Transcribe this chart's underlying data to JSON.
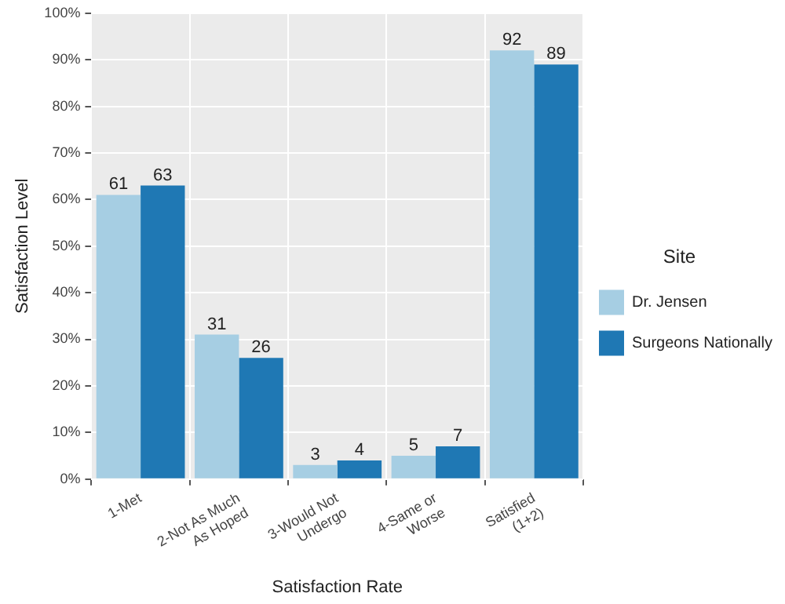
{
  "chart_data": {
    "type": "bar",
    "xlabel": "Satisfaction Rate",
    "ylabel": "Satisfaction Level",
    "legend_title": "Site",
    "categories": [
      "1-Met",
      "2-Not As Much As Hoped",
      "3-Would Not Undergo",
      "4-Same or Worse",
      "Satisfied (1+2)"
    ],
    "series": [
      {
        "name": "Dr. Jensen",
        "color": "#a6cee3",
        "values": [
          61,
          31,
          3,
          5,
          92
        ]
      },
      {
        "name": "Surgeons Nationally",
        "color": "#1f78b4",
        "values": [
          63,
          26,
          4,
          7,
          89
        ]
      }
    ],
    "ylim": [
      0,
      100
    ],
    "yticks": [
      {
        "value": 0,
        "label": "0%"
      },
      {
        "value": 10,
        "label": "10%"
      },
      {
        "value": 20,
        "label": "20%"
      },
      {
        "value": 30,
        "label": "30%"
      },
      {
        "value": 40,
        "label": "40%"
      },
      {
        "value": 50,
        "label": "50%"
      },
      {
        "value": 60,
        "label": "60%"
      },
      {
        "value": 70,
        "label": "70%"
      },
      {
        "value": 80,
        "label": "80%"
      },
      {
        "value": 90,
        "label": "90%"
      },
      {
        "value": 100,
        "label": "100%"
      }
    ],
    "grid": true,
    "legend": "right",
    "data_labels": true
  }
}
